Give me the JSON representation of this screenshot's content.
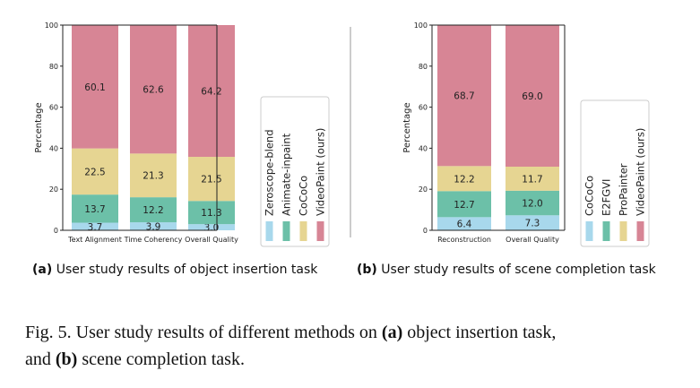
{
  "colors": {
    "zeroscope_blend": "#a8d8ec",
    "animate_inpaint": "#6cc0a8",
    "cococo": "#e6d592",
    "videopaint": "#d78595",
    "divider": "#999999",
    "axis": "#222222"
  },
  "chart_data": [
    {
      "type": "bar",
      "stacked": true,
      "title": "",
      "xlabel": "",
      "ylabel": "Percentage",
      "ylim": [
        0,
        100
      ],
      "yticks": [
        0,
        20,
        40,
        60,
        80,
        100
      ],
      "categories": [
        "Text Alignment",
        "Time Coherency",
        "Overall Quality"
      ],
      "series": [
        {
          "name": "Zeroscope-blend",
          "color": "#a8d8ec",
          "values": [
            3.7,
            3.9,
            3.0
          ]
        },
        {
          "name": "Animate-inpaint",
          "color": "#6cc0a8",
          "values": [
            13.7,
            12.2,
            11.3
          ]
        },
        {
          "name": "CoCoCo",
          "color": "#e6d592",
          "values": [
            22.5,
            21.3,
            21.5
          ]
        },
        {
          "name": "VideoPaint (ours)",
          "color": "#d78595",
          "values": [
            60.1,
            62.6,
            64.2
          ]
        }
      ],
      "legend_position": "right",
      "caption_label": "(a)",
      "caption_text": " User study results of object insertion task"
    },
    {
      "type": "bar",
      "stacked": true,
      "title": "",
      "xlabel": "",
      "ylabel": "Percentage",
      "ylim": [
        0,
        100
      ],
      "yticks": [
        0,
        20,
        40,
        60,
        80,
        100
      ],
      "categories": [
        "Reconstruction",
        "Overall Quality"
      ],
      "series": [
        {
          "name": "CoCoCo",
          "color": "#a8d8ec",
          "values": [
            6.4,
            7.3
          ]
        },
        {
          "name": "E2FGVI",
          "color": "#6cc0a8",
          "values": [
            12.7,
            12.0
          ]
        },
        {
          "name": "ProPainter",
          "color": "#e6d592",
          "values": [
            12.2,
            11.7
          ]
        },
        {
          "name": "VideoPaint (ours)",
          "color": "#d78595",
          "values": [
            68.7,
            69.0
          ]
        }
      ],
      "legend_position": "right",
      "caption_label": "(b)",
      "caption_text": " User study results of scene completion task"
    }
  ],
  "figure_caption": {
    "prefix": "Fig. 5.  User study results of different methods on ",
    "a_label": "(a)",
    "middle": " object insertion task,",
    "line2_prefix": "and ",
    "b_label": "(b)",
    "suffix": " scene completion task."
  }
}
